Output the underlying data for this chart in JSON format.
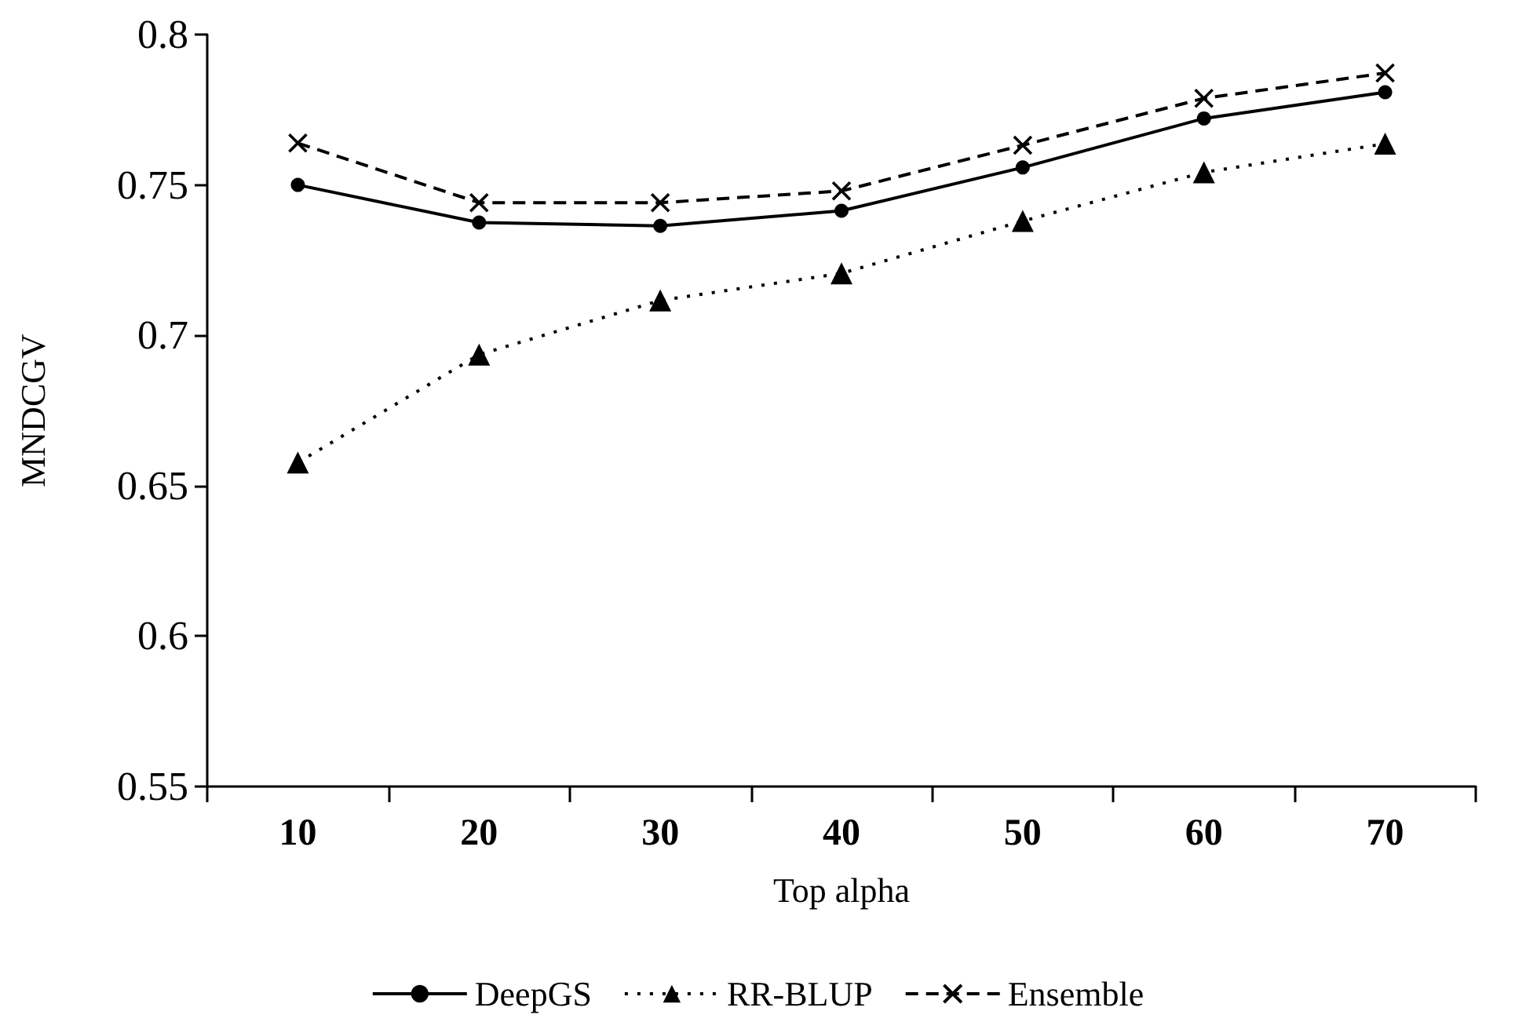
{
  "chart_data": {
    "type": "line",
    "xlabel": "Top alpha",
    "ylabel": "MNDCGV",
    "categories": [
      "10",
      "20",
      "30",
      "40",
      "50",
      "60",
      "70"
    ],
    "series": [
      {
        "name": "DeepGS",
        "color": "#000000",
        "marker": "circle",
        "line_style": "solid",
        "values": [
          0.75,
          0.7375,
          0.7364,
          0.7414,
          0.7558,
          0.7721,
          0.7808
        ]
      },
      {
        "name": "RR-BLUP",
        "color": "#000000",
        "marker": "triangle",
        "line_style": "dotted",
        "values": [
          0.6577,
          0.6936,
          0.7116,
          0.7206,
          0.738,
          0.7542,
          0.7637
        ]
      },
      {
        "name": "Ensemble",
        "color": "#000000",
        "marker": "cross",
        "line_style": "dashed",
        "values": [
          0.7639,
          0.7441,
          0.7441,
          0.748,
          0.7632,
          0.7788,
          0.7872
        ]
      }
    ],
    "ylim": [
      0.55,
      0.8
    ],
    "yticks": [
      0.55,
      0.6,
      0.65,
      0.7,
      0.75,
      0.8
    ],
    "grid": false,
    "legend": "bottom"
  }
}
